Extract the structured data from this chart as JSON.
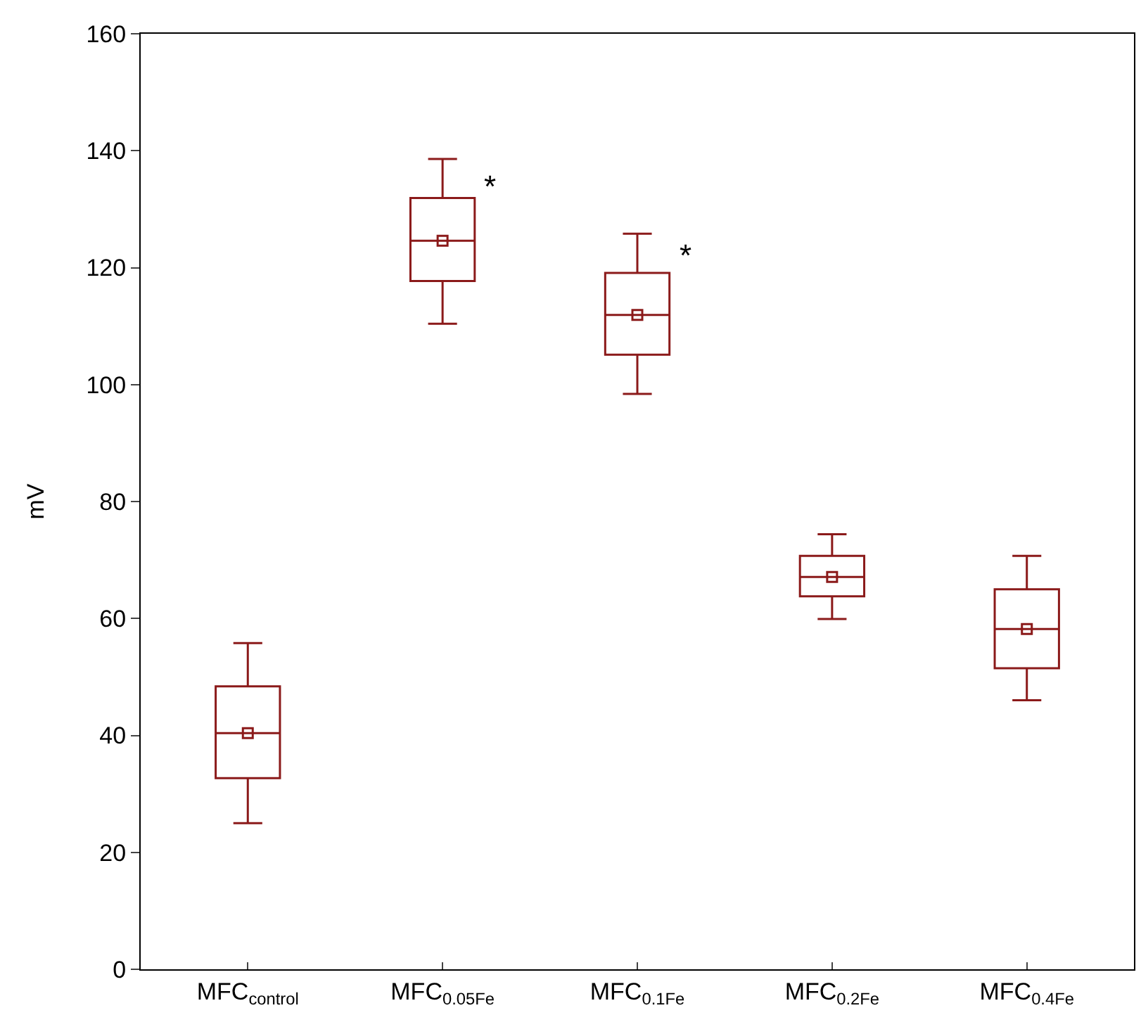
{
  "chart_data": {
    "type": "box",
    "ylabel": "mV",
    "categories": [
      "MFC$_{control}$",
      "MFC$_{0.05Fe}$",
      "MFC$_{0.1Fe}$",
      "MFC$_{0.2Fe}$",
      "MFC$_{0.4Fe}$"
    ],
    "boxes": [
      {
        "low": 25,
        "q1": 32.7,
        "median": 40.4,
        "q3": 48.4,
        "high": 55.8,
        "mean": 40.4
      },
      {
        "low": 110.4,
        "q1": 117.7,
        "median": 124.6,
        "q3": 131.9,
        "high": 138.6,
        "mean": 124.6
      },
      {
        "low": 98.4,
        "q1": 105.1,
        "median": 111.9,
        "q3": 119.1,
        "high": 125.8,
        "mean": 111.9
      },
      {
        "low": 59.9,
        "q1": 63.8,
        "median": 67.1,
        "q3": 70.7,
        "high": 74.4,
        "mean": 67.1
      },
      {
        "low": 46,
        "q1": 51.5,
        "median": 58.2,
        "q3": 65,
        "high": 70.7,
        "mean": 58.2
      }
    ],
    "color": "#8b1a1a",
    "ylim": [
      0,
      160
    ],
    "yticks": [
      0,
      20,
      40,
      60,
      80,
      100,
      120,
      140,
      160
    ],
    "grid": false,
    "annotations": [
      {
        "text": "*",
        "x": "MFC$_{0.05Fe}$",
        "y": 134
      },
      {
        "text": "*",
        "x": "MFC$_{0.1Fe}$",
        "y": 122
      }
    ]
  }
}
